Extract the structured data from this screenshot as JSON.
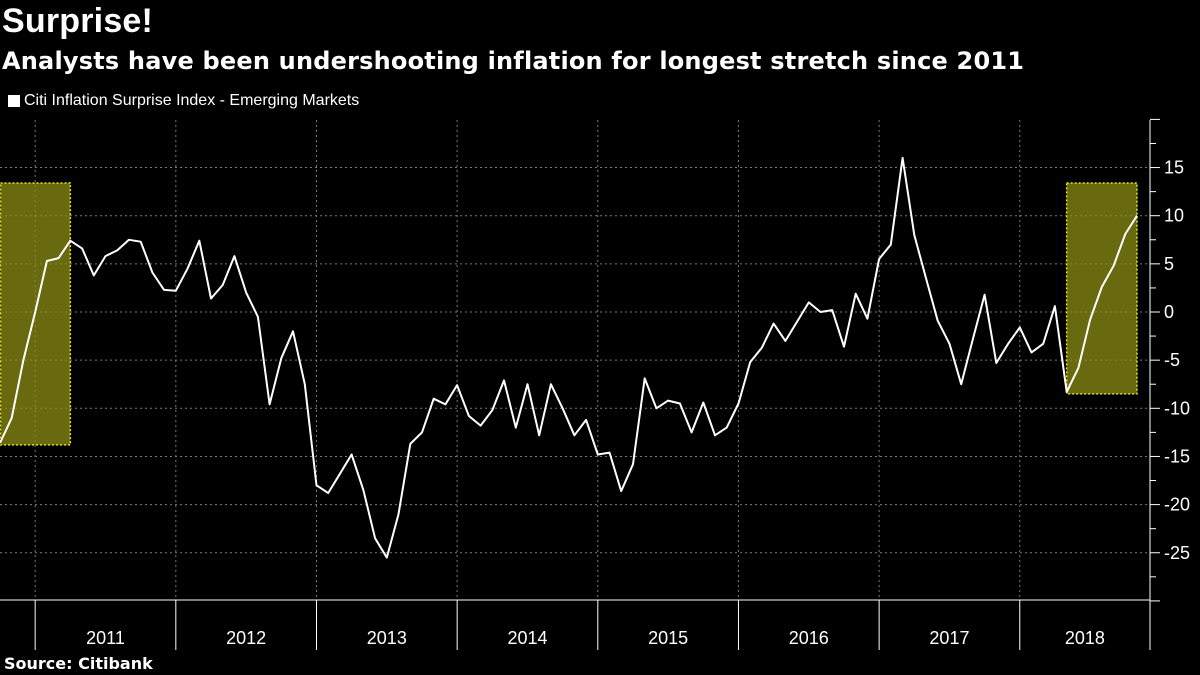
{
  "header": {
    "title": "Surprise!",
    "subtitle": "Analysts have been undershooting inflation for longest stretch since 2011"
  },
  "legend": {
    "label": "Citi Inflation Surprise Index - Emerging Markets"
  },
  "footer": {
    "source": "Source: Citibank"
  },
  "colors": {
    "background": "#000000",
    "line": "#ffffff",
    "highlight": "#8c8c14",
    "highlight_border": "#e6e61a"
  },
  "chart_data": {
    "type": "line",
    "title": "Surprise!",
    "subtitle": "Analysts have been undershooting inflation for longest stretch since 2011",
    "xlabel": "",
    "ylabel": "",
    "x_ticks": [
      "2011",
      "2012",
      "2013",
      "2014",
      "2015",
      "2016",
      "2017",
      "2018"
    ],
    "y_ticks": [
      15,
      10,
      5,
      0,
      -5,
      -10,
      -15,
      -20,
      -25
    ],
    "ylim": [
      -30,
      20
    ],
    "xlim": [
      "2010-10",
      "2018-11"
    ],
    "grid": true,
    "legend_position": "top-left",
    "series": [
      {
        "name": "Citi Inflation Surprise Index - Emerging Markets",
        "points": [
          [
            "2010-10",
            -13.6
          ],
          [
            "2010-11",
            -11.0
          ],
          [
            "2010-12",
            -5.0
          ],
          [
            "2011-01",
            0.0
          ],
          [
            "2011-02",
            5.3
          ],
          [
            "2011-03",
            5.6
          ],
          [
            "2011-04",
            7.4
          ],
          [
            "2011-05",
            6.6
          ],
          [
            "2011-06",
            3.8
          ],
          [
            "2011-07",
            5.8
          ],
          [
            "2011-08",
            6.4
          ],
          [
            "2011-09",
            7.5
          ],
          [
            "2011-10",
            7.3
          ],
          [
            "2011-11",
            4.1
          ],
          [
            "2011-12",
            2.3
          ],
          [
            "2012-01",
            2.2
          ],
          [
            "2012-02",
            4.5
          ],
          [
            "2012-03",
            7.4
          ],
          [
            "2012-04",
            1.4
          ],
          [
            "2012-05",
            2.8
          ],
          [
            "2012-06",
            5.8
          ],
          [
            "2012-07",
            2.0
          ],
          [
            "2012-08",
            -0.5
          ],
          [
            "2012-09",
            -9.6
          ],
          [
            "2012-10",
            -4.8
          ],
          [
            "2012-11",
            -2.0
          ],
          [
            "2012-12",
            -7.5
          ],
          [
            "2013-01",
            -18.0
          ],
          [
            "2013-02",
            -18.8
          ],
          [
            "2013-03",
            -16.8
          ],
          [
            "2013-04",
            -14.8
          ],
          [
            "2013-05",
            -18.5
          ],
          [
            "2013-06",
            -23.5
          ],
          [
            "2013-07",
            -25.5
          ],
          [
            "2013-08",
            -21.0
          ],
          [
            "2013-09",
            -13.7
          ],
          [
            "2013-10",
            -12.5
          ],
          [
            "2013-11",
            -9.0
          ],
          [
            "2013-12",
            -9.6
          ],
          [
            "2014-01",
            -7.6
          ],
          [
            "2014-02",
            -10.8
          ],
          [
            "2014-03",
            -11.8
          ],
          [
            "2014-04",
            -10.2
          ],
          [
            "2014-05",
            -7.1
          ],
          [
            "2014-06",
            -12.0
          ],
          [
            "2014-07",
            -7.5
          ],
          [
            "2014-08",
            -12.8
          ],
          [
            "2014-09",
            -7.5
          ],
          [
            "2014-10",
            -10.0
          ],
          [
            "2014-11",
            -12.8
          ],
          [
            "2014-12",
            -11.2
          ],
          [
            "2015-01",
            -14.8
          ],
          [
            "2015-02",
            -14.6
          ],
          [
            "2015-03",
            -18.6
          ],
          [
            "2015-04",
            -15.8
          ],
          [
            "2015-05",
            -6.9
          ],
          [
            "2015-06",
            -10.0
          ],
          [
            "2015-07",
            -9.2
          ],
          [
            "2015-08",
            -9.5
          ],
          [
            "2015-09",
            -12.5
          ],
          [
            "2015-10",
            -9.4
          ],
          [
            "2015-11",
            -12.8
          ],
          [
            "2015-12",
            -12.0
          ],
          [
            "2016-01",
            -9.5
          ],
          [
            "2016-02",
            -5.2
          ],
          [
            "2016-03",
            -3.7
          ],
          [
            "2016-04",
            -1.2
          ],
          [
            "2016-05",
            -3.0
          ],
          [
            "2016-06",
            -1.0
          ],
          [
            "2016-07",
            1.0
          ],
          [
            "2016-08",
            0.0
          ],
          [
            "2016-09",
            0.2
          ],
          [
            "2016-10",
            -3.6
          ],
          [
            "2016-11",
            1.9
          ],
          [
            "2016-12",
            -0.7
          ],
          [
            "2017-01",
            5.5
          ],
          [
            "2017-02",
            7.0
          ],
          [
            "2017-03",
            16.0
          ],
          [
            "2017-04",
            8.0
          ],
          [
            "2017-05",
            3.5
          ],
          [
            "2017-06",
            -0.9
          ],
          [
            "2017-07",
            -3.3
          ],
          [
            "2017-08",
            -7.5
          ],
          [
            "2017-09",
            -2.8
          ],
          [
            "2017-10",
            1.8
          ],
          [
            "2017-11",
            -5.3
          ],
          [
            "2017-12",
            -3.3
          ],
          [
            "2018-01",
            -1.6
          ],
          [
            "2018-02",
            -4.2
          ],
          [
            "2018-03",
            -3.3
          ],
          [
            "2018-04",
            0.6
          ],
          [
            "2018-05",
            -8.3
          ],
          [
            "2018-06",
            -5.8
          ],
          [
            "2018-07",
            -0.8
          ],
          [
            "2018-08",
            2.6
          ],
          [
            "2018-09",
            4.8
          ],
          [
            "2018-10",
            8.1
          ],
          [
            "2018-11",
            10.0
          ]
        ]
      }
    ],
    "highlights": [
      {
        "x_start": "2010-10",
        "x_end": "2011-04",
        "y_low": -13.8,
        "y_high": 13.4
      },
      {
        "x_start": "2018-05",
        "x_end": "2018-11",
        "y_low": -8.5,
        "y_high": 13.4
      }
    ]
  }
}
